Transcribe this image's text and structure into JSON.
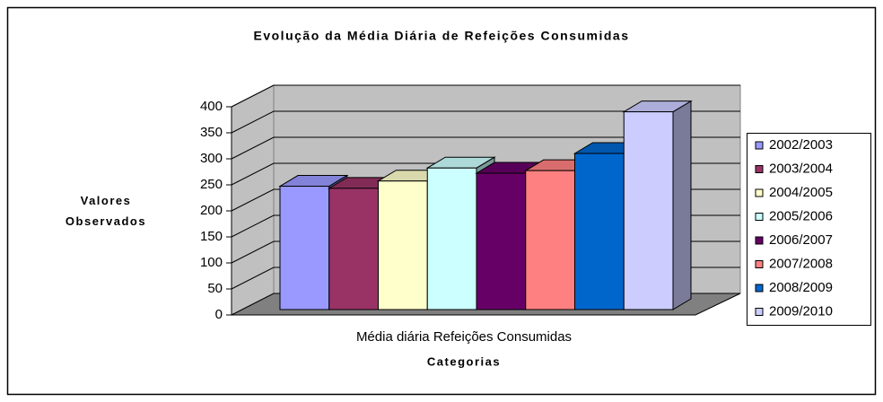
{
  "chart_data": {
    "type": "bar3d",
    "title": "Evolução da Média Diária de Refeições Consumidas",
    "categories": [
      "Média diária Refeições Consumidas"
    ],
    "x_label": "Categorias",
    "y_label": "Valores Observados",
    "ylim": [
      0,
      400
    ],
    "yticks": [
      0,
      50,
      100,
      150,
      200,
      250,
      300,
      350,
      400
    ],
    "grid": true,
    "legend": "right",
    "series": [
      {
        "name": "2002/2003",
        "color": "#9999ff",
        "values": [
          237
        ]
      },
      {
        "name": "2003/2004",
        "color": "#993366",
        "values": [
          233
        ]
      },
      {
        "name": "2004/2005",
        "color": "#ffffcc",
        "values": [
          247
        ]
      },
      {
        "name": "2005/2006",
        "color": "#ccffff",
        "values": [
          272
        ]
      },
      {
        "name": "2006/2007",
        "color": "#660066",
        "values": [
          262
        ]
      },
      {
        "name": "2007/2008",
        "color": "#ff8080",
        "values": [
          267
        ]
      },
      {
        "name": "2008/2009",
        "color": "#0066cc",
        "values": [
          300
        ]
      },
      {
        "name": "2009/2010",
        "color": "#ccccff",
        "values": [
          380
        ]
      }
    ]
  }
}
